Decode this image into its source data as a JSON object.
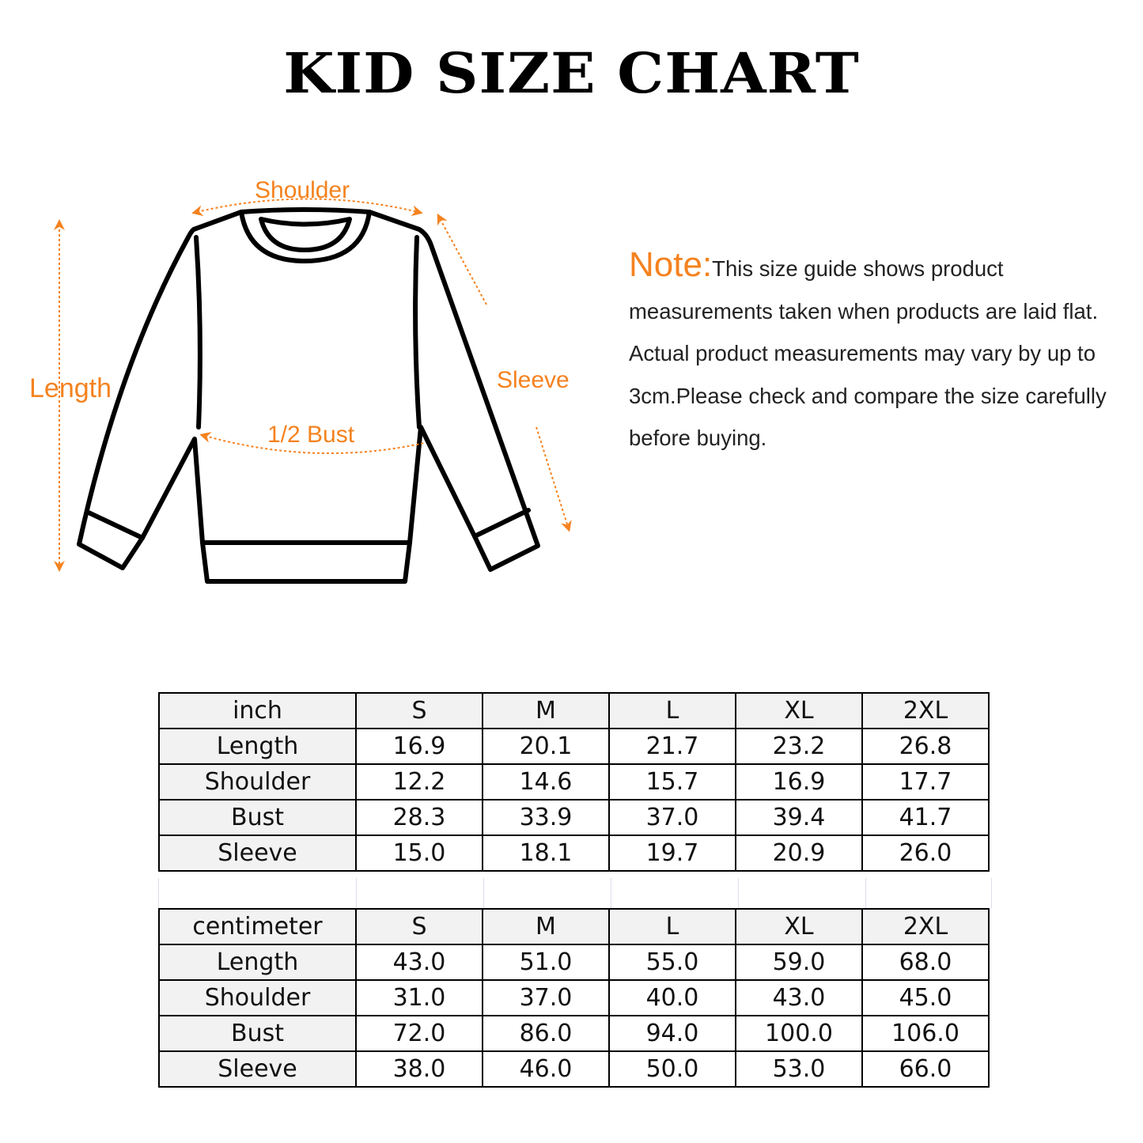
{
  "title": "KID SIZE CHART",
  "colors": {
    "accent": "#f5821f",
    "outline": "#000000",
    "header_bg": "#f2f2f2"
  },
  "diagram": {
    "labels": {
      "shoulder": "Shoulder",
      "length": "Length",
      "sleeve": "Sleeve",
      "bust": "1/2 Bust"
    }
  },
  "note": {
    "heading": "Note:",
    "text": "This size guide shows product measurements taken when products are laid flat. Actual product measurements may vary by up to 3cm.Please check and compare the size carefully before buying."
  },
  "tables": [
    {
      "unit": "inch",
      "sizes": [
        "S",
        "M",
        "L",
        "XL",
        "2XL"
      ],
      "rows": [
        {
          "label": "Length",
          "values": [
            "16.9",
            "20.1",
            "21.7",
            "23.2",
            "26.8"
          ]
        },
        {
          "label": "Shoulder",
          "values": [
            "12.2",
            "14.6",
            "15.7",
            "16.9",
            "17.7"
          ]
        },
        {
          "label": "Bust",
          "values": [
            "28.3",
            "33.9",
            "37.0",
            "39.4",
            "41.7"
          ]
        },
        {
          "label": "Sleeve",
          "values": [
            "15.0",
            "18.1",
            "19.7",
            "20.9",
            "26.0"
          ]
        }
      ]
    },
    {
      "unit": "centimeter",
      "sizes": [
        "S",
        "M",
        "L",
        "XL",
        "2XL"
      ],
      "rows": [
        {
          "label": "Length",
          "values": [
            "43.0",
            "51.0",
            "55.0",
            "59.0",
            "68.0"
          ]
        },
        {
          "label": "Shoulder",
          "values": [
            "31.0",
            "37.0",
            "40.0",
            "43.0",
            "45.0"
          ]
        },
        {
          "label": "Bust",
          "values": [
            "72.0",
            "86.0",
            "94.0",
            "100.0",
            "106.0"
          ]
        },
        {
          "label": "Sleeve",
          "values": [
            "38.0",
            "46.0",
            "50.0",
            "53.0",
            "66.0"
          ]
        }
      ]
    }
  ]
}
